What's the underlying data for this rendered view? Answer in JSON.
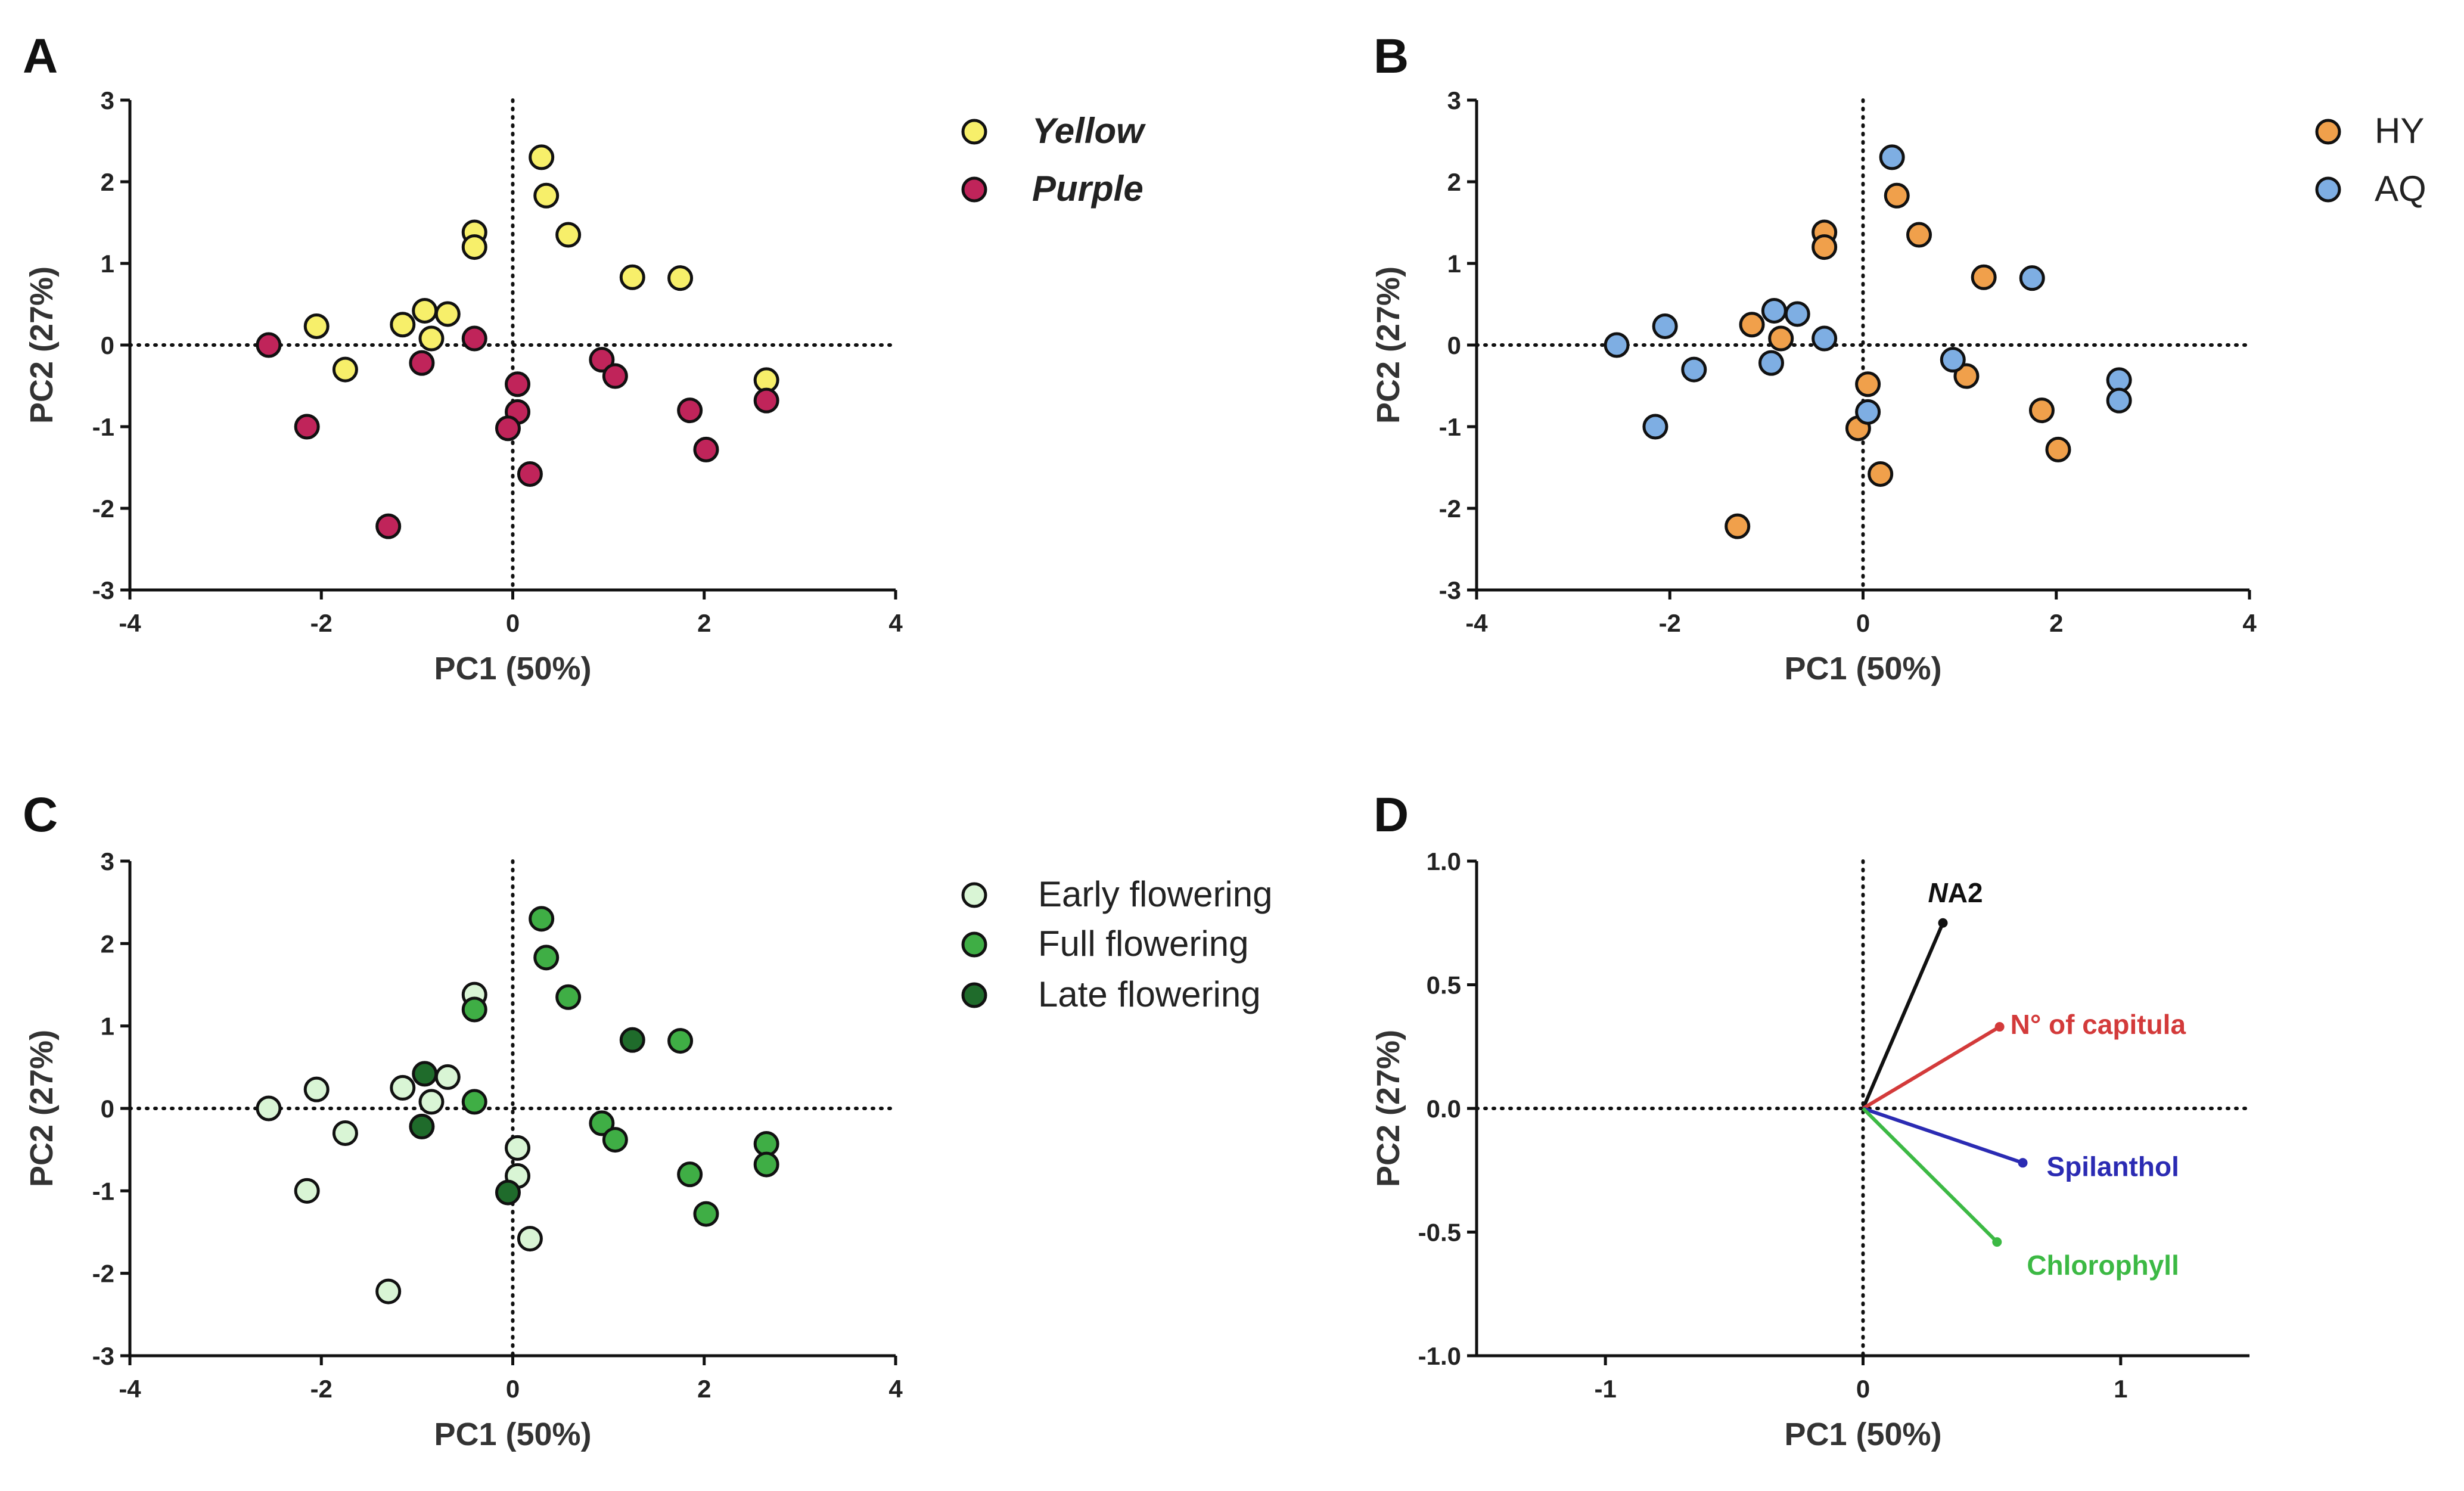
{
  "chart_data": [
    {
      "panel": "A",
      "type": "scatter",
      "xlabel": "PC1 (50%)",
      "ylabel": "PC2 (27%)",
      "xlim": [
        -4,
        4
      ],
      "ylim": [
        -3,
        3
      ],
      "xticks": [
        -4,
        -2,
        0,
        2,
        4
      ],
      "yticks": [
        -3,
        -2,
        -1,
        0,
        1,
        2,
        3
      ],
      "zero_lines": true,
      "legend_position": "right",
      "series": [
        {
          "name": "Yellow",
          "color": "#f7ef6a",
          "italic": true,
          "points": [
            [
              0.3,
              2.3
            ],
            [
              0.35,
              1.83
            ],
            [
              0.58,
              1.35
            ],
            [
              -0.4,
              1.38
            ],
            [
              -0.4,
              1.2
            ],
            [
              1.25,
              0.83
            ],
            [
              1.75,
              0.82
            ],
            [
              -2.05,
              0.23
            ],
            [
              -1.75,
              -0.3
            ],
            [
              -1.15,
              0.25
            ],
            [
              -0.92,
              0.42
            ],
            [
              -0.85,
              0.08
            ],
            [
              -0.68,
              0.38
            ],
            [
              2.65,
              -0.43
            ]
          ]
        },
        {
          "name": "Purple",
          "color": "#c0245a",
          "italic": true,
          "points": [
            [
              -2.55,
              0.0
            ],
            [
              -2.15,
              -1.0
            ],
            [
              -1.3,
              -2.22
            ],
            [
              -0.95,
              -0.22
            ],
            [
              -0.4,
              0.08
            ],
            [
              0.05,
              -0.48
            ],
            [
              0.05,
              -0.82
            ],
            [
              -0.05,
              -1.02
            ],
            [
              0.18,
              -1.58
            ],
            [
              0.93,
              -0.18
            ],
            [
              1.07,
              -0.38
            ],
            [
              1.85,
              -0.8
            ],
            [
              2.02,
              -1.28
            ],
            [
              2.65,
              -0.68
            ]
          ]
        }
      ]
    },
    {
      "panel": "B",
      "type": "scatter",
      "xlabel": "PC1 (50%)",
      "ylabel": "PC2 (27%)",
      "xlim": [
        -4,
        4
      ],
      "ylim": [
        -3,
        3
      ],
      "xticks": [
        -4,
        -2,
        0,
        2,
        4
      ],
      "yticks": [
        -3,
        -2,
        -1,
        0,
        1,
        2,
        3
      ],
      "zero_lines": true,
      "legend_position": "right",
      "series": [
        {
          "name": "HY",
          "color": "#f0a04b",
          "italic": false,
          "points": [
            [
              0.35,
              1.83
            ],
            [
              0.58,
              1.35
            ],
            [
              -0.4,
              1.38
            ],
            [
              -0.4,
              1.2
            ],
            [
              1.25,
              0.83
            ],
            [
              -1.15,
              0.25
            ],
            [
              -0.85,
              0.08
            ],
            [
              0.05,
              -0.48
            ],
            [
              -0.05,
              -1.02
            ],
            [
              0.18,
              -1.58
            ],
            [
              1.07,
              -0.38
            ],
            [
              1.85,
              -0.8
            ],
            [
              2.02,
              -1.28
            ],
            [
              -1.3,
              -2.22
            ]
          ]
        },
        {
          "name": "AQ",
          "color": "#7eaee3",
          "italic": false,
          "points": [
            [
              0.3,
              2.3
            ],
            [
              1.75,
              0.82
            ],
            [
              -2.55,
              0.0
            ],
            [
              -2.05,
              0.23
            ],
            [
              -1.75,
              -0.3
            ],
            [
              -2.15,
              -1.0
            ],
            [
              -0.92,
              0.42
            ],
            [
              -0.68,
              0.38
            ],
            [
              -0.95,
              -0.22
            ],
            [
              -0.4,
              0.08
            ],
            [
              0.05,
              -0.82
            ],
            [
              0.93,
              -0.18
            ],
            [
              2.65,
              -0.43
            ],
            [
              2.65,
              -0.68
            ]
          ]
        }
      ]
    },
    {
      "panel": "C",
      "type": "scatter",
      "xlabel": "PC1 (50%)",
      "ylabel": "PC2 (27%)",
      "xlim": [
        -4,
        4
      ],
      "ylim": [
        -3,
        3
      ],
      "xticks": [
        -4,
        -2,
        0,
        2,
        4
      ],
      "yticks": [
        -3,
        -2,
        -1,
        0,
        1,
        2,
        3
      ],
      "zero_lines": true,
      "legend_position": "right",
      "series": [
        {
          "name": "Early flowering",
          "color": "#d9f5d5",
          "italic": false,
          "points": [
            [
              -2.55,
              0.0
            ],
            [
              -2.05,
              0.23
            ],
            [
              -1.75,
              -0.3
            ],
            [
              -2.15,
              -1.0
            ],
            [
              -1.3,
              -2.22
            ],
            [
              -1.15,
              0.25
            ],
            [
              -0.85,
              0.08
            ],
            [
              -0.68,
              0.38
            ],
            [
              0.05,
              -0.48
            ],
            [
              0.05,
              -0.82
            ],
            [
              0.18,
              -1.58
            ],
            [
              -0.4,
              1.38
            ]
          ]
        },
        {
          "name": "Full flowering",
          "color": "#3fae45",
          "italic": false,
          "points": [
            [
              0.3,
              2.3
            ],
            [
              0.35,
              1.83
            ],
            [
              0.58,
              1.35
            ],
            [
              -0.4,
              1.2
            ],
            [
              1.75,
              0.82
            ],
            [
              -0.4,
              0.08
            ],
            [
              0.93,
              -0.18
            ],
            [
              1.07,
              -0.38
            ],
            [
              1.85,
              -0.8
            ],
            [
              2.02,
              -1.28
            ],
            [
              2.65,
              -0.43
            ],
            [
              2.65,
              -0.68
            ]
          ]
        },
        {
          "name": "Late flowering",
          "color": "#1f6b2b",
          "italic": false,
          "points": [
            [
              1.25,
              0.83
            ],
            [
              -0.92,
              0.42
            ],
            [
              -0.95,
              -0.22
            ],
            [
              -0.05,
              -1.02
            ]
          ]
        }
      ]
    },
    {
      "panel": "D",
      "type": "vector",
      "xlabel": "PC1 (50%)",
      "ylabel": "PC2 (27%)",
      "xlim": [
        -1.5,
        1.5
      ],
      "ylim": [
        -1.0,
        1.0
      ],
      "xticks": [
        -1,
        0,
        1
      ],
      "xtick_labels": [
        "-1",
        "0",
        "1"
      ],
      "yticks": [
        -1.0,
        -0.5,
        0.0,
        0.5,
        1.0
      ],
      "ytick_labels": [
        "-1.0",
        "-0.5",
        "0.0",
        "0.5",
        "1.0"
      ],
      "zero_lines": true,
      "vectors": [
        {
          "name": "NA2",
          "name_italic_part": "N",
          "name_rest": "A2",
          "x": 0.31,
          "y": 0.75,
          "color": "#111111",
          "label_color": "#111111"
        },
        {
          "name": "N° of capitula",
          "x": 0.53,
          "y": 0.33,
          "color": "#d33a3a",
          "label_color": "#d33a3a"
        },
        {
          "name": "Spilanthol",
          "x": 0.62,
          "y": -0.22,
          "color": "#2b2bb3",
          "label_color": "#2b2bb3"
        },
        {
          "name": "Chlorophyll",
          "x": 0.52,
          "y": -0.54,
          "color": "#3cb944",
          "label_color": "#3cb944"
        }
      ]
    }
  ]
}
